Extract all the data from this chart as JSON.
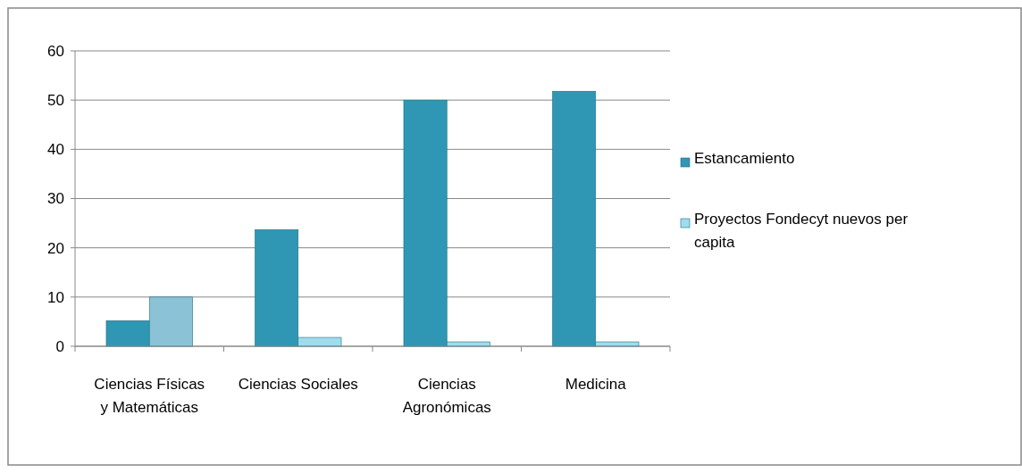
{
  "chart_data": {
    "type": "bar",
    "categories": [
      "Ciencias Físicas y Matemáticas",
      "Ciencias Sociales",
      "Ciencias Agronómicas",
      "Medicina"
    ],
    "series": [
      {
        "name": "Estancamiento",
        "color": "#2f97b3",
        "values": [
          5.2,
          23.7,
          50,
          51.8
        ]
      },
      {
        "name": "Proyectos Fondecyt nuevos per capita",
        "color": "#9fdcee",
        "colors": [
          "#8cc2d6",
          "#9fdcee",
          "#9fdcee",
          "#9fdcee"
        ],
        "values": [
          10,
          1.8,
          0.9,
          0.9
        ]
      }
    ],
    "ylim": [
      0,
      60
    ],
    "yticks": [
      0,
      10,
      20,
      30,
      40,
      50,
      60
    ],
    "grid": "y",
    "legend": "right"
  }
}
